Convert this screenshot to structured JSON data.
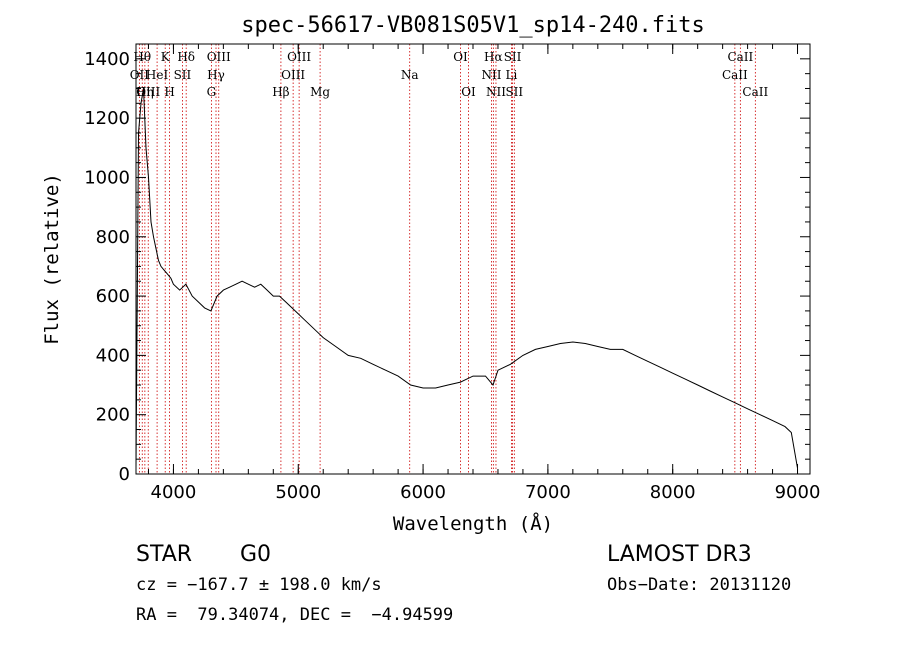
{
  "chart_data": {
    "type": "line",
    "title": "spec-56617-VB081S05V1_sp14-240.fits",
    "xlabel": "Wavelength (Å)",
    "ylabel": "Flux (relative)",
    "xlim": [
      3700,
      9100
    ],
    "ylim": [
      0,
      1450
    ],
    "x_ticks": [
      {
        "value": 4000,
        "label": "4000"
      },
      {
        "value": 5000,
        "label": "5000"
      },
      {
        "value": 6000,
        "label": "6000"
      },
      {
        "value": 7000,
        "label": "7000"
      },
      {
        "value": 8000,
        "label": "8000"
      },
      {
        "value": 9000,
        "label": "9000"
      }
    ],
    "y_ticks": [
      {
        "value": 0,
        "label": "0"
      },
      {
        "value": 200,
        "label": "200"
      },
      {
        "value": 400,
        "label": "400"
      },
      {
        "value": 600,
        "label": "600"
      },
      {
        "value": 800,
        "label": "800"
      },
      {
        "value": 1000,
        "label": "1000"
      },
      {
        "value": 1200,
        "label": "1200"
      },
      {
        "value": 1400,
        "label": "1400"
      }
    ],
    "spectrum": {
      "x": [
        3700,
        3720,
        3740,
        3760,
        3780,
        3800,
        3820,
        3840,
        3860,
        3880,
        3900,
        3920,
        3940,
        3960,
        3980,
        4000,
        4050,
        4100,
        4150,
        4200,
        4250,
        4300,
        4350,
        4400,
        4450,
        4500,
        4550,
        4600,
        4650,
        4700,
        4750,
        4800,
        4850,
        4900,
        4950,
        5000,
        5050,
        5100,
        5150,
        5200,
        5300,
        5400,
        5500,
        5600,
        5700,
        5800,
        5900,
        6000,
        6100,
        6200,
        6300,
        6400,
        6500,
        6560,
        6600,
        6700,
        6800,
        6900,
        7000,
        7100,
        7200,
        7300,
        7400,
        7500,
        7600,
        7700,
        7800,
        7900,
        8000,
        8100,
        8200,
        8300,
        8400,
        8500,
        8600,
        8700,
        8800,
        8900,
        8950,
        9000
      ],
      "y": [
        20,
        1150,
        1250,
        1300,
        1100,
        1000,
        850,
        800,
        760,
        720,
        700,
        690,
        680,
        670,
        660,
        640,
        620,
        640,
        600,
        580,
        560,
        550,
        600,
        620,
        630,
        640,
        650,
        640,
        630,
        640,
        620,
        600,
        600,
        580,
        560,
        540,
        520,
        500,
        480,
        460,
        430,
        400,
        390,
        370,
        350,
        330,
        300,
        290,
        290,
        300,
        310,
        330,
        330,
        300,
        350,
        370,
        400,
        420,
        430,
        440,
        445,
        440,
        430,
        420,
        420,
        400,
        380,
        360,
        340,
        320,
        300,
        280,
        260,
        240,
        220,
        200,
        180,
        160,
        140,
        20
      ]
    },
    "lines": [
      {
        "w": 3727,
        "label": "OII",
        "row": 1
      },
      {
        "w": 3750,
        "label": "Hθ",
        "row": 0
      },
      {
        "w": 3771,
        "label": "Hη",
        "row": 2
      },
      {
        "w": 3798,
        "label": "OIII",
        "row": 2
      },
      {
        "w": 3869,
        "label": "HeI",
        "row": 1
      },
      {
        "w": 3934,
        "label": "K",
        "row": 0
      },
      {
        "w": 3969,
        "label": "H",
        "row": 2
      },
      {
        "w": 4072,
        "label": "SII",
        "row": 1
      },
      {
        "w": 4102,
        "label": "Hδ",
        "row": 0
      },
      {
        "w": 4304,
        "label": "G",
        "row": 2
      },
      {
        "w": 4341,
        "label": "Hγ",
        "row": 1
      },
      {
        "w": 4363,
        "label": "OIII",
        "row": 0
      },
      {
        "w": 4861,
        "label": "Hβ",
        "row": 2
      },
      {
        "w": 4959,
        "label": "OIII",
        "row": 1
      },
      {
        "w": 5007,
        "label": "OIII",
        "row": 0
      },
      {
        "w": 5175,
        "label": "Mg",
        "row": 2
      },
      {
        "w": 5893,
        "label": "Na",
        "row": 1
      },
      {
        "w": 6300,
        "label": "OI",
        "row": 0
      },
      {
        "w": 6364,
        "label": "OI",
        "row": 2
      },
      {
        "w": 6548,
        "label": "NII",
        "row": 1
      },
      {
        "w": 6563,
        "label": "Hα",
        "row": 0
      },
      {
        "w": 6584,
        "label": "NII",
        "row": 2
      },
      {
        "w": 6708,
        "label": "Li",
        "row": 1
      },
      {
        "w": 6717,
        "label": "SII",
        "row": 0
      },
      {
        "w": 6731,
        "label": "SII",
        "row": 2
      },
      {
        "w": 8498,
        "label": "CaII",
        "row": 1
      },
      {
        "w": 8542,
        "label": "CaII",
        "row": 0
      },
      {
        "w": 8662,
        "label": "CaII",
        "row": 2
      }
    ]
  },
  "info": {
    "class": "STAR",
    "subclass": "G0",
    "survey": "LAMOST DR3",
    "cz": "cz = −167.7 ± 198.0 km/s",
    "obs_date": "Obs−Date: 20131120",
    "radec": "RA =  79.34074, DEC =  −4.94599"
  }
}
